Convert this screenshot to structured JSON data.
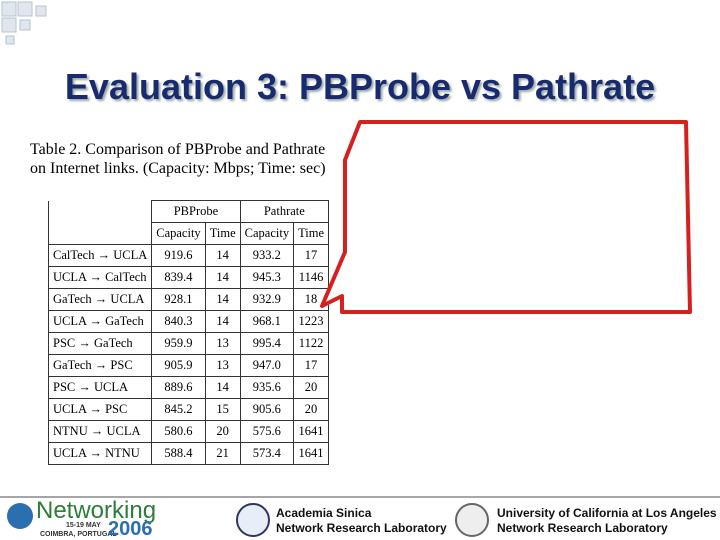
{
  "title": "Evaluation 3: PBProbe vs Pathrate",
  "caption": {
    "line1": "Table 2. Comparison of PBProbe and Pathrate",
    "line2": "on Internet links. (Capacity: Mbps; Time: sec)"
  },
  "table": {
    "group_headers": [
      "PBProbe",
      "Pathrate"
    ],
    "column_headers": [
      "Capacity",
      "Time",
      "Capacity",
      "Time"
    ],
    "rows": [
      [
        "CalTech → UCLA",
        "919.6",
        "14",
        "933.2",
        "17"
      ],
      [
        "UCLA → CalTech",
        "839.4",
        "14",
        "945.3",
        "1146"
      ],
      [
        "GaTech → UCLA",
        "928.1",
        "14",
        "932.9",
        "18"
      ],
      [
        "UCLA → GaTech",
        "840.3",
        "14",
        "968.1",
        "1223"
      ],
      [
        "PSC → GaTech",
        "959.9",
        "13",
        "995.4",
        "1122"
      ],
      [
        "GaTech → PSC",
        "905.9",
        "13",
        "947.0",
        "17"
      ],
      [
        "PSC → UCLA",
        "889.6",
        "14",
        "935.6",
        "20"
      ],
      [
        "UCLA → PSC",
        "845.2",
        "15",
        "905.6",
        "20"
      ],
      [
        "NTNU → UCLA",
        "580.6",
        "20",
        "575.6",
        "1641"
      ],
      [
        "UCLA → NTNU",
        "588.4",
        "21",
        "573.4",
        "1641"
      ]
    ]
  },
  "footer": {
    "conference": {
      "name": "Networking",
      "dates": "15-19 MAY",
      "place": "COIMBRA, PORTUGAL",
      "year": "2006"
    },
    "lab1": {
      "line1": "Academia Sinica",
      "line2": "Network Research Laboratory"
    },
    "lab2": {
      "line1": "University of California at Los Angeles",
      "line2": "Network Research Laboratory"
    }
  }
}
